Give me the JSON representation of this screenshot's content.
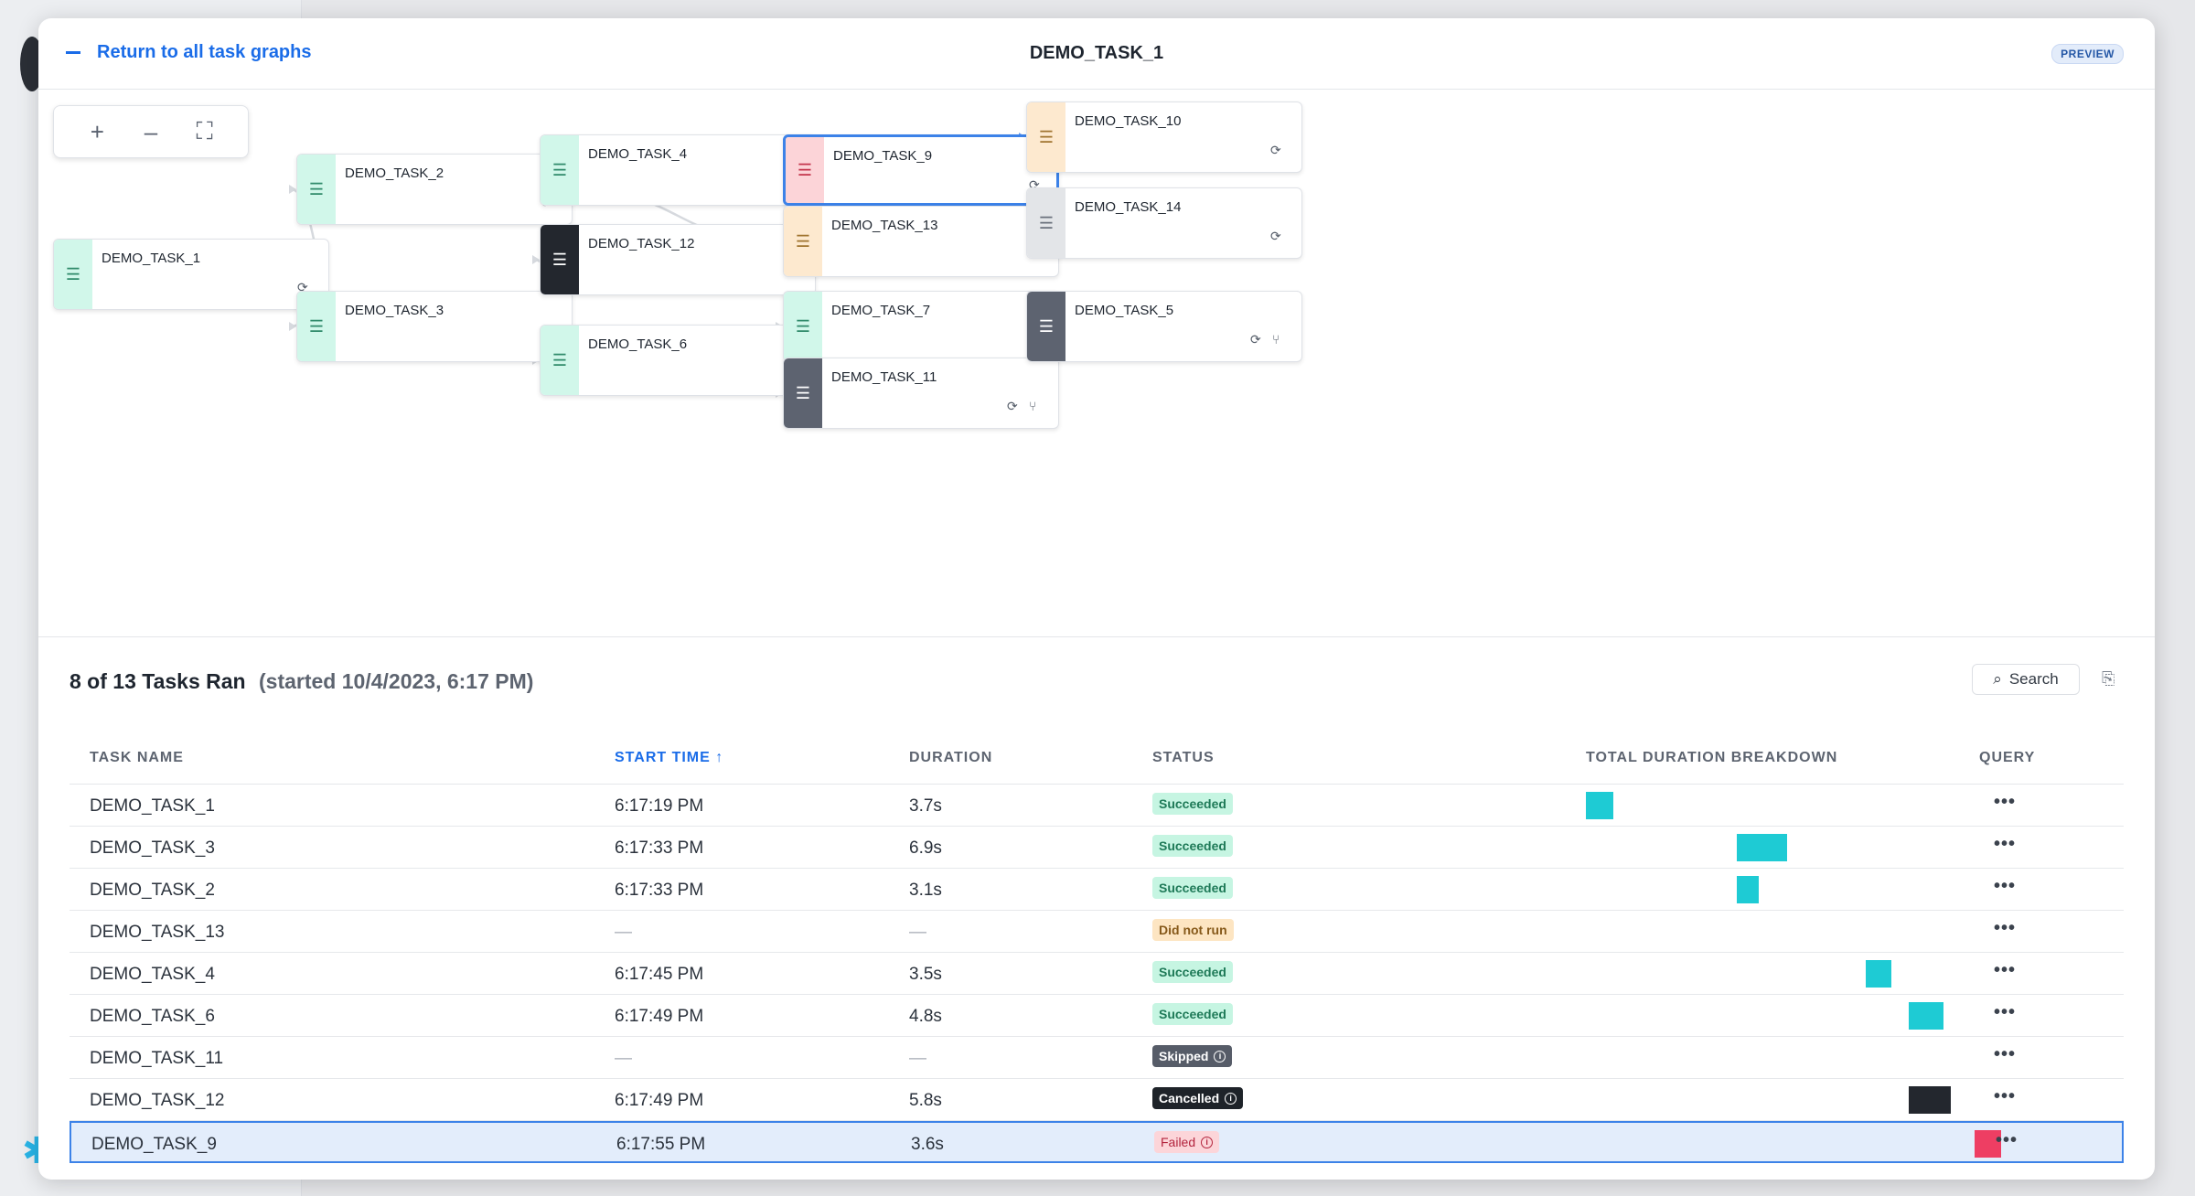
{
  "header": {
    "back_label": "Return to all task graphs",
    "title": "DEMO_TASK_1",
    "preview_badge": "PREVIEW"
  },
  "zoom": {
    "zoom_in": "+",
    "zoom_out": "–",
    "fit": "⛶"
  },
  "icons": {
    "node_type": "list-task-icon",
    "node_action": "refresh-icon",
    "branch": "branch-icon",
    "open": "external-link-icon",
    "search": "search-icon",
    "export": "export-icon",
    "info": "info-icon"
  },
  "colors": {
    "accent": "#1a6ce8",
    "succeeded": "#1ecbd4",
    "cancelled": "#23272e",
    "failed": "#ee3e63",
    "edge_selected": "#6ca0ef",
    "edge": "#d6d9de"
  },
  "nodes": [
    {
      "id": "t1",
      "name": "DEMO_TASK_1",
      "status": "Succeeded",
      "info": false
    },
    {
      "id": "t2",
      "name": "DEMO_TASK_2",
      "status": "Succeeded",
      "info": false
    },
    {
      "id": "t3",
      "name": "DEMO_TASK_3",
      "status": "Succeeded",
      "info": false
    },
    {
      "id": "t4",
      "name": "DEMO_TASK_4",
      "status": "Succeeded",
      "info": false
    },
    {
      "id": "t12",
      "name": "DEMO_TASK_12",
      "status": "Cancelled",
      "info": true
    },
    {
      "id": "t6",
      "name": "DEMO_TASK_6",
      "status": "Succeeded",
      "info": false
    },
    {
      "id": "t9",
      "name": "DEMO_TASK_9",
      "status": "Failed",
      "info": true
    },
    {
      "id": "t13",
      "name": "DEMO_TASK_13",
      "status": "Did not run",
      "info": false
    },
    {
      "id": "t7",
      "name": "DEMO_TASK_7",
      "status": "Succeeded",
      "info": false
    },
    {
      "id": "t11",
      "name": "DEMO_TASK_11",
      "status": "Skipped",
      "info": true
    },
    {
      "id": "t10",
      "name": "DEMO_TASK_10",
      "status": "Did not run",
      "info": false
    },
    {
      "id": "t14",
      "name": "DEMO_TASK_14",
      "status": "Suspended",
      "info": false
    },
    {
      "id": "t5",
      "name": "DEMO_TASK_5",
      "status": "Skipped",
      "info": true
    }
  ],
  "edges": [
    [
      "t1",
      "t2"
    ],
    [
      "t1",
      "t3"
    ],
    [
      "t2",
      "t4"
    ],
    [
      "t2",
      "t13"
    ],
    [
      "t3",
      "t12"
    ],
    [
      "t3",
      "t6"
    ],
    [
      "t12",
      "t13"
    ],
    [
      "t4",
      "t9"
    ],
    [
      "t6",
      "t7"
    ],
    [
      "t6",
      "t11"
    ],
    [
      "t9",
      "t10"
    ],
    [
      "t9",
      "t14"
    ],
    [
      "t7",
      "t5"
    ]
  ],
  "summary": {
    "count": "8 of 13 Tasks Ran",
    "started": "(started 10/4/2023, 6:17 PM)"
  },
  "search_label": "Search",
  "table": {
    "columns": [
      "TASK NAME",
      "START TIME",
      "DURATION",
      "STATUS",
      "TOTAL DURATION BREAKDOWN",
      "QUERY"
    ],
    "sorted_column": "START TIME",
    "sort_direction": "ascending",
    "rows": [
      {
        "name": "DEMO_TASK_1",
        "start": "6:17:19 PM",
        "duration": "3.7s",
        "status": "Succeeded",
        "selected": false
      },
      {
        "name": "DEMO_TASK_3",
        "start": "6:17:33 PM",
        "duration": "6.9s",
        "status": "Succeeded",
        "selected": false
      },
      {
        "name": "DEMO_TASK_2",
        "start": "6:17:33 PM",
        "duration": "3.1s",
        "status": "Succeeded",
        "selected": false
      },
      {
        "name": "DEMO_TASK_13",
        "start": "—",
        "duration": "—",
        "status": "Did not run",
        "selected": false
      },
      {
        "name": "DEMO_TASK_4",
        "start": "6:17:45 PM",
        "duration": "3.5s",
        "status": "Succeeded",
        "selected": false
      },
      {
        "name": "DEMO_TASK_6",
        "start": "6:17:49 PM",
        "duration": "4.8s",
        "status": "Succeeded",
        "selected": false
      },
      {
        "name": "DEMO_TASK_11",
        "start": "—",
        "duration": "—",
        "status": "Skipped",
        "selected": false
      },
      {
        "name": "DEMO_TASK_12",
        "start": "6:17:49 PM",
        "duration": "5.8s",
        "status": "Cancelled",
        "selected": false
      },
      {
        "name": "DEMO_TASK_9",
        "start": "6:17:55 PM",
        "duration": "3.6s",
        "status": "Failed",
        "selected": true
      }
    ],
    "query_action": "•••"
  }
}
